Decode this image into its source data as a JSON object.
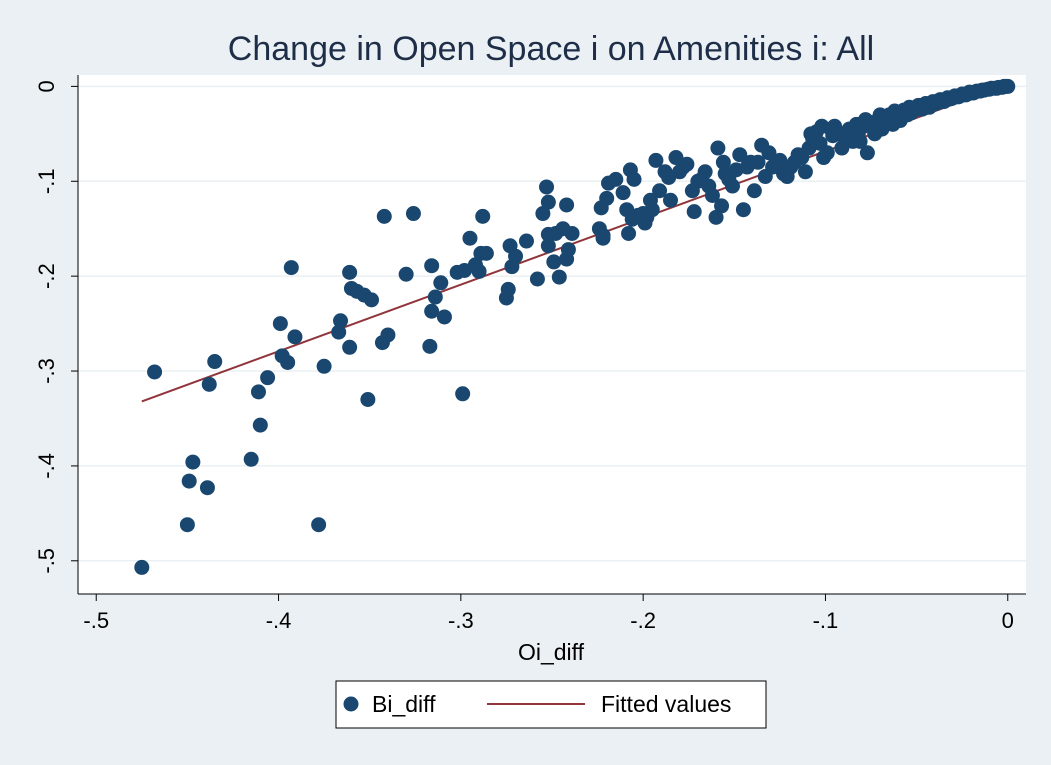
{
  "chart_data": {
    "type": "scatter",
    "title": "Change in Open Space i on Amenities i: All",
    "xlabel": "Oi_diff",
    "ylabel": "",
    "xlim": [
      -0.51,
      0.01
    ],
    "ylim": [
      -0.535,
      0.012
    ],
    "x_ticks": [
      -0.5,
      -0.4,
      -0.3,
      -0.2,
      -0.1,
      0
    ],
    "x_tick_labels": [
      "-.5",
      "-.4",
      "-.3",
      "-.2",
      "-.1",
      "0"
    ],
    "y_ticks": [
      0,
      -0.1,
      -0.2,
      -0.3,
      -0.4,
      -0.5
    ],
    "y_tick_labels": [
      "0",
      "-.1",
      "-.2",
      "-.3",
      "-.4",
      "-.5"
    ],
    "grid": true,
    "legend_position": "bottom",
    "colors": {
      "marker": "#1a476f",
      "fit_line": "#90353b",
      "plot_bg": "#ffffff",
      "outer_bg": "#eaf0f3",
      "grid": "#eaf0f3"
    },
    "series": [
      {
        "name": "Bi_diff",
        "kind": "scatter",
        "points": [
          [
            -0.475,
            -0.507
          ],
          [
            -0.468,
            -0.301
          ],
          [
            -0.45,
            -0.462
          ],
          [
            -0.449,
            -0.416
          ],
          [
            -0.447,
            -0.396
          ],
          [
            -0.439,
            -0.423
          ],
          [
            -0.438,
            -0.314
          ],
          [
            -0.435,
            -0.29
          ],
          [
            -0.415,
            -0.393
          ],
          [
            -0.411,
            -0.322
          ],
          [
            -0.41,
            -0.357
          ],
          [
            -0.406,
            -0.307
          ],
          [
            -0.399,
            -0.25
          ],
          [
            -0.398,
            -0.284
          ],
          [
            -0.395,
            -0.291
          ],
          [
            -0.393,
            -0.191
          ],
          [
            -0.391,
            -0.264
          ],
          [
            -0.378,
            -0.462
          ],
          [
            -0.375,
            -0.295
          ],
          [
            -0.367,
            -0.259
          ],
          [
            -0.366,
            -0.247
          ],
          [
            -0.361,
            -0.196
          ],
          [
            -0.361,
            -0.275
          ],
          [
            -0.36,
            -0.213
          ],
          [
            -0.357,
            -0.216
          ],
          [
            -0.353,
            -0.22
          ],
          [
            -0.351,
            -0.33
          ],
          [
            -0.349,
            -0.225
          ],
          [
            -0.343,
            -0.27
          ],
          [
            -0.342,
            -0.137
          ],
          [
            -0.34,
            -0.262
          ],
          [
            -0.33,
            -0.198
          ],
          [
            -0.326,
            -0.134
          ],
          [
            -0.317,
            -0.274
          ],
          [
            -0.316,
            -0.189
          ],
          [
            -0.316,
            -0.237
          ],
          [
            -0.314,
            -0.222
          ],
          [
            -0.311,
            -0.207
          ],
          [
            -0.309,
            -0.243
          ],
          [
            -0.302,
            -0.196
          ],
          [
            -0.299,
            -0.324
          ],
          [
            -0.298,
            -0.194
          ],
          [
            -0.295,
            -0.16
          ],
          [
            -0.292,
            -0.188
          ],
          [
            -0.29,
            -0.195
          ],
          [
            -0.289,
            -0.176
          ],
          [
            -0.288,
            -0.137
          ],
          [
            -0.286,
            -0.176
          ],
          [
            -0.275,
            -0.223
          ],
          [
            -0.274,
            -0.214
          ],
          [
            -0.273,
            -0.168
          ],
          [
            -0.272,
            -0.19
          ],
          [
            -0.27,
            -0.179
          ],
          [
            -0.264,
            -0.163
          ],
          [
            -0.258,
            -0.203
          ],
          [
            -0.255,
            -0.134
          ],
          [
            -0.253,
            -0.106
          ],
          [
            -0.252,
            -0.122
          ],
          [
            -0.252,
            -0.168
          ],
          [
            -0.252,
            -0.156
          ],
          [
            -0.249,
            -0.185
          ],
          [
            -0.248,
            -0.155
          ],
          [
            -0.246,
            -0.201
          ],
          [
            -0.244,
            -0.15
          ],
          [
            -0.242,
            -0.182
          ],
          [
            -0.242,
            -0.125
          ],
          [
            -0.241,
            -0.172
          ],
          [
            -0.239,
            -0.155
          ],
          [
            -0.224,
            -0.15
          ],
          [
            -0.223,
            -0.128
          ],
          [
            -0.222,
            -0.157
          ],
          [
            -0.222,
            -0.16
          ],
          [
            -0.22,
            -0.118
          ],
          [
            -0.219,
            -0.102
          ],
          [
            -0.215,
            -0.098
          ],
          [
            -0.211,
            -0.112
          ],
          [
            -0.209,
            -0.13
          ],
          [
            -0.208,
            -0.155
          ],
          [
            -0.207,
            -0.088
          ],
          [
            -0.206,
            -0.14
          ],
          [
            -0.205,
            -0.098
          ],
          [
            -0.203,
            -0.136
          ],
          [
            -0.2,
            -0.134
          ],
          [
            -0.199,
            -0.144
          ],
          [
            -0.198,
            -0.138
          ],
          [
            -0.196,
            -0.12
          ],
          [
            -0.195,
            -0.13
          ],
          [
            -0.193,
            -0.078
          ],
          [
            -0.191,
            -0.11
          ],
          [
            -0.188,
            -0.09
          ],
          [
            -0.186,
            -0.096
          ],
          [
            -0.185,
            -0.12
          ],
          [
            -0.182,
            -0.075
          ],
          [
            -0.18,
            -0.09
          ],
          [
            -0.178,
            -0.085
          ],
          [
            -0.176,
            -0.082
          ],
          [
            -0.173,
            -0.11
          ],
          [
            -0.172,
            -0.132
          ],
          [
            -0.17,
            -0.1
          ],
          [
            -0.168,
            -0.098
          ],
          [
            -0.166,
            -0.09
          ],
          [
            -0.164,
            -0.105
          ],
          [
            -0.162,
            -0.115
          ],
          [
            -0.16,
            -0.138
          ],
          [
            -0.159,
            -0.065
          ],
          [
            -0.157,
            -0.126
          ],
          [
            -0.156,
            -0.08
          ],
          [
            -0.155,
            -0.092
          ],
          [
            -0.153,
            -0.098
          ],
          [
            -0.151,
            -0.105
          ],
          [
            -0.149,
            -0.088
          ],
          [
            -0.147,
            -0.072
          ],
          [
            -0.145,
            -0.13
          ],
          [
            -0.143,
            -0.085
          ],
          [
            -0.141,
            -0.08
          ],
          [
            -0.139,
            -0.11
          ],
          [
            -0.137,
            -0.08
          ],
          [
            -0.135,
            -0.062
          ],
          [
            -0.133,
            -0.095
          ],
          [
            -0.131,
            -0.07
          ],
          [
            -0.129,
            -0.085
          ],
          [
            -0.127,
            -0.08
          ],
          [
            -0.125,
            -0.078
          ],
          [
            -0.123,
            -0.092
          ],
          [
            -0.121,
            -0.095
          ],
          [
            -0.119,
            -0.085
          ],
          [
            -0.117,
            -0.08
          ],
          [
            -0.115,
            -0.072
          ],
          [
            -0.113,
            -0.075
          ],
          [
            -0.111,
            -0.09
          ],
          [
            -0.109,
            -0.065
          ],
          [
            -0.107,
            -0.055
          ],
          [
            -0.105,
            -0.048
          ],
          [
            -0.103,
            -0.06
          ],
          [
            -0.101,
            -0.075
          ],
          [
            -0.099,
            -0.07
          ],
          [
            -0.097,
            -0.045
          ],
          [
            -0.095,
            -0.042
          ],
          [
            -0.093,
            -0.05
          ],
          [
            -0.091,
            -0.065
          ],
          [
            -0.089,
            -0.055
          ],
          [
            -0.087,
            -0.045
          ],
          [
            -0.085,
            -0.058
          ],
          [
            -0.083,
            -0.04
          ],
          [
            -0.081,
            -0.058
          ],
          [
            -0.079,
            -0.042
          ],
          [
            -0.077,
            -0.07
          ],
          [
            -0.075,
            -0.038
          ],
          [
            -0.073,
            -0.05
          ],
          [
            -0.071,
            -0.035
          ],
          [
            -0.069,
            -0.045
          ],
          [
            -0.067,
            -0.038
          ],
          [
            -0.065,
            -0.03
          ],
          [
            -0.063,
            -0.04
          ],
          [
            -0.061,
            -0.032
          ],
          [
            -0.059,
            -0.036
          ],
          [
            -0.057,
            -0.025
          ],
          [
            -0.055,
            -0.03
          ],
          [
            -0.053,
            -0.028
          ],
          [
            -0.051,
            -0.025
          ],
          [
            -0.049,
            -0.02
          ],
          [
            -0.047,
            -0.024
          ],
          [
            -0.045,
            -0.018
          ],
          [
            -0.043,
            -0.022
          ],
          [
            -0.041,
            -0.016
          ],
          [
            -0.039,
            -0.018
          ],
          [
            -0.037,
            -0.014
          ],
          [
            -0.035,
            -0.016
          ],
          [
            -0.033,
            -0.012
          ],
          [
            -0.031,
            -0.013
          ],
          [
            -0.029,
            -0.01
          ],
          [
            -0.027,
            -0.011
          ],
          [
            -0.025,
            -0.008
          ],
          [
            -0.023,
            -0.009
          ],
          [
            -0.021,
            -0.006
          ],
          [
            -0.019,
            -0.007
          ],
          [
            -0.017,
            -0.005
          ],
          [
            -0.015,
            -0.005
          ],
          [
            -0.013,
            -0.004
          ],
          [
            -0.011,
            -0.003
          ],
          [
            -0.009,
            -0.002
          ],
          [
            -0.007,
            -0.002
          ],
          [
            -0.005,
            -0.001
          ],
          [
            -0.003,
            -0.001
          ],
          [
            -0.002,
            0.0
          ],
          [
            -0.001,
            0.0
          ],
          [
            0.0,
            0.0
          ],
          [
            -0.108,
            -0.05
          ],
          [
            -0.102,
            -0.042
          ],
          [
            -0.096,
            -0.052
          ],
          [
            -0.088,
            -0.048
          ],
          [
            -0.082,
            -0.05
          ],
          [
            -0.078,
            -0.035
          ],
          [
            -0.074,
            -0.042
          ],
          [
            -0.07,
            -0.03
          ],
          [
            -0.066,
            -0.034
          ],
          [
            -0.062,
            -0.026
          ],
          [
            -0.058,
            -0.028
          ],
          [
            -0.054,
            -0.022
          ],
          [
            -0.05,
            -0.022
          ],
          [
            -0.046,
            -0.02
          ],
          [
            -0.042,
            -0.018
          ],
          [
            -0.038,
            -0.015
          ],
          [
            -0.034,
            -0.014
          ],
          [
            -0.03,
            -0.012
          ],
          [
            -0.026,
            -0.01
          ],
          [
            -0.022,
            -0.008
          ],
          [
            -0.018,
            -0.006
          ],
          [
            -0.014,
            -0.004
          ],
          [
            -0.01,
            -0.003
          ],
          [
            -0.006,
            -0.002
          ]
        ]
      },
      {
        "name": "Fitted values",
        "kind": "line",
        "points": [
          [
            -0.475,
            -0.332
          ],
          [
            0.0,
            0.002
          ]
        ]
      }
    ]
  }
}
